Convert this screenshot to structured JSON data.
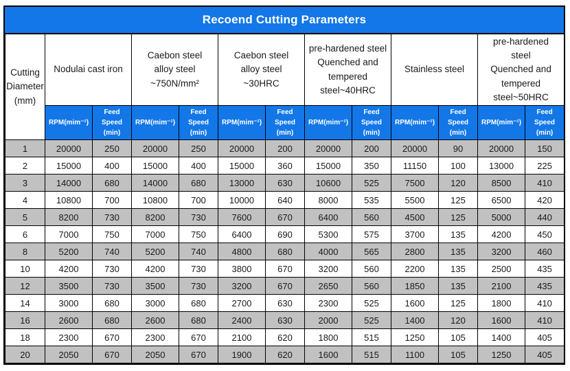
{
  "title": "Recoend Cutting Parameters",
  "colors": {
    "header_blue": "#1377e8",
    "row_alt_gray": "#c1c1c1",
    "border_black": "#000000",
    "header_text_white": "#ffffff"
  },
  "chart_data": {
    "type": "table",
    "title": "Recoend Cutting Parameters",
    "corner_header": "Cutting\nDiameter\n(mm)",
    "material_groups": [
      "Nodulai cast iron",
      "Caebon steel\nalloy steel\n~750N/mm²",
      "Caebon steel\nalloy steel\n~30HRC",
      "pre-hardened steel\nQuenched and\ntempered\nsteel~40HRC",
      "Stainless steel",
      "pre-hardened\nsteel\nQuenched and\ntempered\nsteel~50HRC"
    ],
    "subcolumn_labels": {
      "rpm": "RPM(mim⁻¹)",
      "feed": "Feed Speed\n(min)"
    },
    "rows": [
      {
        "diameter": "1",
        "values": [
          20000,
          250,
          20000,
          250,
          20000,
          200,
          20000,
          200,
          20000,
          90,
          20000,
          150
        ]
      },
      {
        "diameter": "2",
        "values": [
          15000,
          400,
          15000,
          400,
          15000,
          360,
          15000,
          350,
          11150,
          100,
          13000,
          225
        ]
      },
      {
        "diameter": "3",
        "values": [
          14000,
          680,
          14000,
          680,
          13000,
          630,
          10600,
          525,
          7500,
          120,
          8500,
          410
        ]
      },
      {
        "diameter": "4",
        "values": [
          10800,
          700,
          10800,
          700,
          10000,
          640,
          8000,
          535,
          5500,
          125,
          6500,
          420
        ]
      },
      {
        "diameter": "5",
        "values": [
          8200,
          730,
          8200,
          730,
          7600,
          670,
          6400,
          560,
          4500,
          125,
          5000,
          440
        ]
      },
      {
        "diameter": "6",
        "values": [
          7000,
          750,
          7000,
          750,
          6400,
          690,
          5300,
          575,
          3700,
          135,
          4200,
          450
        ]
      },
      {
        "diameter": "8",
        "values": [
          5200,
          740,
          5200,
          740,
          4800,
          680,
          4000,
          565,
          2800,
          135,
          3200,
          460
        ]
      },
      {
        "diameter": "10",
        "values": [
          4200,
          730,
          4200,
          730,
          3800,
          670,
          3200,
          560,
          2200,
          135,
          2500,
          435
        ]
      },
      {
        "diameter": "12",
        "values": [
          3500,
          730,
          3500,
          730,
          3200,
          670,
          2650,
          560,
          1850,
          135,
          2100,
          435
        ]
      },
      {
        "diameter": "14",
        "values": [
          3000,
          680,
          3000,
          680,
          2700,
          630,
          2300,
          525,
          1600,
          125,
          1800,
          410
        ]
      },
      {
        "diameter": "16",
        "values": [
          2600,
          680,
          2600,
          680,
          2400,
          630,
          2000,
          525,
          1400,
          120,
          1600,
          410
        ]
      },
      {
        "diameter": "18",
        "values": [
          2300,
          670,
          2300,
          670,
          2100,
          620,
          1800,
          515,
          1250,
          105,
          1400,
          405
        ]
      },
      {
        "diameter": "20",
        "values": [
          2050,
          670,
          2050,
          670,
          1900,
          620,
          1600,
          515,
          1100,
          105,
          1250,
          405
        ]
      }
    ]
  }
}
